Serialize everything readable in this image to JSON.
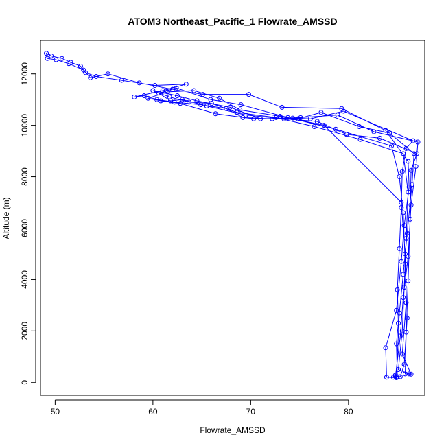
{
  "chart_data": {
    "type": "line",
    "title": "ATOM3 Northeast_Pacific_1 Flowrate_AMSSD",
    "xlabel": "Flowrate_AMSSD",
    "ylabel": "Altitude (m)",
    "xlim": [
      48.5,
      87.8
    ],
    "ylim": [
      -500,
      13300
    ],
    "x_ticks": [
      50,
      60,
      70,
      80
    ],
    "y_ticks": [
      0,
      2000,
      4000,
      6000,
      8000,
      10000,
      12000
    ],
    "grid": false,
    "color": "#0000ff",
    "markers": "open circle",
    "series": [
      {
        "name": "",
        "points": [
          [
            84.6,
            200
          ],
          [
            84.8,
            280
          ],
          [
            85.0,
            220
          ],
          [
            84.9,
            1500
          ],
          [
            85.1,
            2300
          ],
          [
            85.0,
            3600
          ],
          [
            85.2,
            5200
          ],
          [
            85.4,
            6800
          ],
          [
            85.5,
            8200
          ],
          [
            85.9,
            9100
          ],
          [
            86.6,
            9400
          ],
          [
            79.5,
            10550
          ],
          [
            76.1,
            10250
          ],
          [
            74.3,
            10280
          ],
          [
            72.2,
            10250
          ],
          [
            69.2,
            10300
          ],
          [
            67.5,
            10650
          ],
          [
            64.9,
            10800
          ],
          [
            62.2,
            10900
          ],
          [
            60.4,
            11000
          ],
          [
            59.1,
            11150
          ],
          [
            58.1,
            11100
          ],
          [
            61.0,
            11350
          ],
          [
            63.4,
            11600
          ],
          [
            60.2,
            11550
          ],
          [
            56.8,
            11750
          ],
          [
            54.2,
            11900
          ],
          [
            53.1,
            12050
          ],
          [
            52.6,
            12300
          ],
          [
            51.6,
            12450
          ],
          [
            50.7,
            12600
          ],
          [
            49.6,
            12700
          ],
          [
            49.1,
            12800
          ],
          [
            49.2,
            12600
          ],
          [
            50.1,
            12550
          ],
          [
            51.4,
            12400
          ],
          [
            52.9,
            12150
          ],
          [
            53.6,
            11850
          ],
          [
            55.4,
            12000
          ],
          [
            58.6,
            11650
          ],
          [
            62.0,
            11400
          ],
          [
            65.1,
            11200
          ],
          [
            69.8,
            11200
          ],
          [
            73.2,
            10700
          ],
          [
            79.3,
            10650
          ],
          [
            83.8,
            9800
          ],
          [
            86.1,
            8600
          ],
          [
            86.2,
            7600
          ],
          [
            85.7,
            6100
          ],
          [
            85.4,
            4700
          ],
          [
            84.9,
            2800
          ],
          [
            83.8,
            1350
          ],
          [
            83.9,
            200
          ],
          [
            84.9,
            180
          ],
          [
            85.2,
            2700
          ],
          [
            85.6,
            4200
          ],
          [
            86.0,
            5800
          ],
          [
            86.5,
            7700
          ],
          [
            86.7,
            8900
          ],
          [
            84.2,
            9700
          ],
          [
            81.1,
            9950
          ],
          [
            77.2,
            10500
          ],
          [
            74.8,
            10250
          ],
          [
            70.3,
            10250
          ],
          [
            66.4,
            10450
          ],
          [
            62.8,
            10850
          ],
          [
            60.8,
            10950
          ],
          [
            59.5,
            11050
          ],
          [
            61.5,
            11300
          ],
          [
            64.2,
            11350
          ],
          [
            66.8,
            11050
          ],
          [
            68.9,
            10600
          ],
          [
            73.0,
            10350
          ],
          [
            77.5,
            10000
          ],
          [
            85.4,
            7000
          ],
          [
            85.8,
            5000
          ],
          [
            85.9,
            3100
          ],
          [
            85.5,
            1100
          ],
          [
            86.4,
            320
          ],
          [
            85.8,
            330
          ],
          [
            85.9,
            1950
          ],
          [
            86.1,
            3950
          ],
          [
            86.3,
            6350
          ],
          [
            86.4,
            8250
          ],
          [
            87.0,
            8900
          ],
          [
            83.2,
            9500
          ],
          [
            79.8,
            9650
          ],
          [
            76.8,
            10150
          ],
          [
            73.4,
            10250
          ],
          [
            69.5,
            10400
          ],
          [
            65.5,
            10750
          ],
          [
            63.0,
            11000
          ],
          [
            61.8,
            10950
          ],
          [
            60.6,
            11250
          ],
          [
            62.4,
            11450
          ],
          [
            65.9,
            11000
          ],
          [
            69.0,
            10800
          ],
          [
            73.8,
            10300
          ],
          [
            78.7,
            9850
          ],
          [
            84.4,
            9200
          ],
          [
            85.2,
            8000
          ],
          [
            85.6,
            6600
          ],
          [
            85.8,
            4600
          ],
          [
            86.0,
            2500
          ],
          [
            85.7,
            700
          ],
          [
            85.3,
            220
          ],
          [
            84.8,
            230
          ],
          [
            85.3,
            1800
          ],
          [
            85.6,
            3300
          ],
          [
            86.1,
            4900
          ],
          [
            86.4,
            6900
          ],
          [
            86.9,
            8400
          ],
          [
            87.1,
            9350
          ],
          [
            82.6,
            9750
          ],
          [
            78.9,
            10400
          ],
          [
            75.1,
            10300
          ],
          [
            71.0,
            10250
          ],
          [
            67.9,
            10700
          ],
          [
            64.5,
            10950
          ],
          [
            62.5,
            11150
          ],
          [
            60.0,
            11350
          ],
          [
            61.7,
            11100
          ],
          [
            63.7,
            10900
          ],
          [
            66.0,
            10850
          ],
          [
            68.6,
            10500
          ],
          [
            72.6,
            10300
          ],
          [
            76.5,
            9950
          ],
          [
            81.2,
            9450
          ],
          [
            85.6,
            8900
          ],
          [
            86.1,
            7400
          ],
          [
            85.9,
            5600
          ],
          [
            85.7,
            3700
          ],
          [
            85.5,
            2000
          ],
          [
            85.1,
            500
          ],
          [
            86.2,
            330
          ]
        ]
      }
    ]
  }
}
